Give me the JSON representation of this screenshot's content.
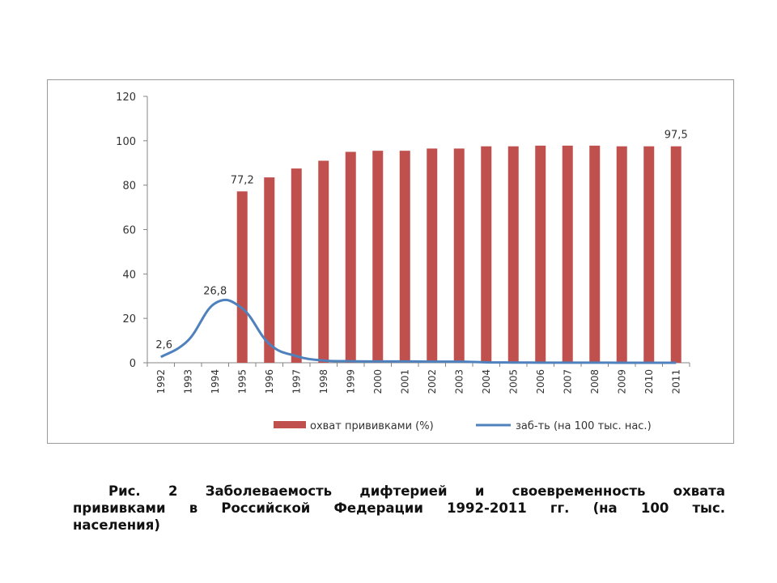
{
  "chart_data": {
    "type": "bar",
    "categories": [
      "1992",
      "1993",
      "1994",
      "1995",
      "1996",
      "1997",
      "1998",
      "1999",
      "2000",
      "2001",
      "2002",
      "2003",
      "2004",
      "2005",
      "2006",
      "2007",
      "2008",
      "2009",
      "2010",
      "2011"
    ],
    "series": [
      {
        "name": "охват прививками (%)",
        "type": "bar",
        "color": "#c0504d",
        "values": [
          null,
          null,
          null,
          77.2,
          83.5,
          87.5,
          91,
          95,
          95.5,
          95.5,
          96.5,
          96.5,
          97.5,
          97.5,
          97.8,
          97.8,
          97.8,
          97.5,
          97.5,
          97.5
        ],
        "labels": {
          "1995": "77,2",
          "2011": "97,5"
        }
      },
      {
        "name": "заб-ть (на 100 тыс. нас.)",
        "type": "line",
        "color": "#4f81bd",
        "values": [
          2.6,
          10,
          26.8,
          24.5,
          8.5,
          3,
          1,
          0.7,
          0.6,
          0.6,
          0.5,
          0.5,
          0.2,
          0.1,
          0.05,
          0.03,
          0.03,
          0.02,
          0.02,
          0.01
        ],
        "labels": {
          "1992": "2,6",
          "1994": "26,8"
        }
      }
    ],
    "ylim": [
      0,
      120
    ],
    "yticks": [
      "0",
      "20",
      "40",
      "60",
      "80",
      "100",
      "120"
    ],
    "grid": false,
    "legend_position": "bottom-right",
    "title": "",
    "xlabel": "",
    "ylabel": ""
  },
  "caption": {
    "lines": [
      "Рис. 2 Заболеваемость дифтерией  и своевременность охвата",
      "прививками в Российской Федерации 1992-2011 гг. (на 100 тыс.",
      "населения)"
    ]
  }
}
